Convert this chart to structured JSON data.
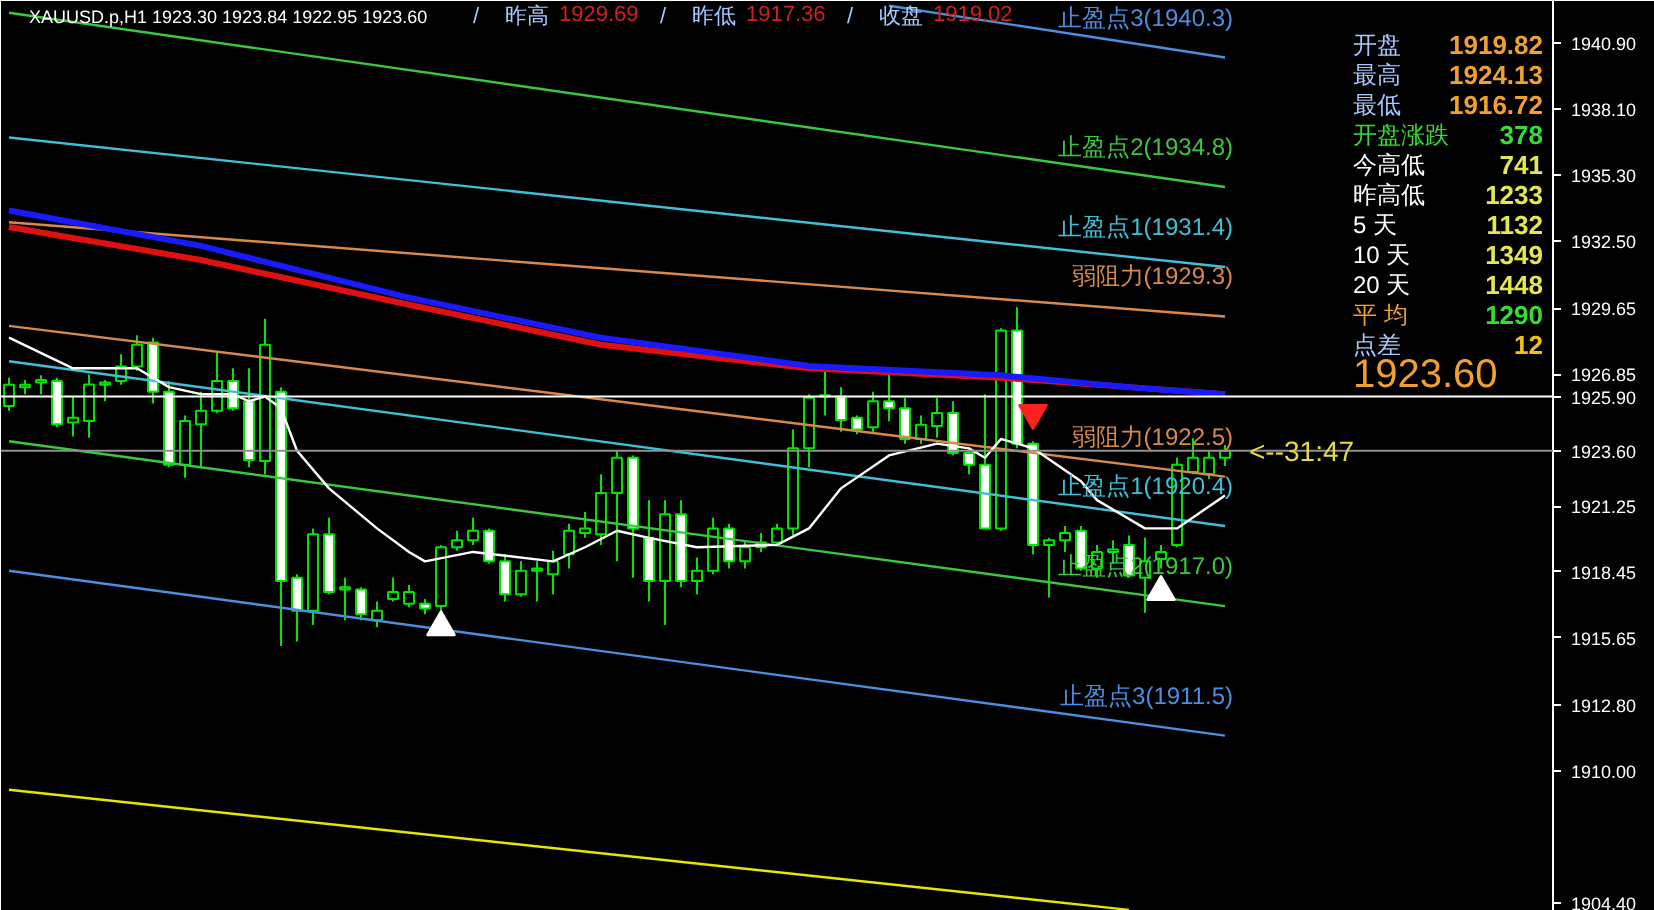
{
  "chart_data": {
    "type": "candlestick",
    "categories": [
      null,
      null,
      null,
      null,
      null,
      null,
      null,
      null,
      null,
      null,
      null,
      null,
      null,
      null,
      null,
      null,
      null,
      null,
      null,
      null,
      null,
      null,
      null,
      null,
      null,
      null,
      null,
      null,
      null,
      null,
      null,
      null,
      null,
      null,
      null,
      null,
      null,
      null,
      null,
      null,
      null,
      null,
      null,
      null,
      null,
      null,
      null,
      null,
      null,
      null,
      null,
      null,
      null,
      null,
      null,
      null,
      null,
      null,
      null,
      null,
      null,
      null,
      null,
      null,
      null,
      null,
      null,
      null,
      null,
      null,
      null,
      null,
      null,
      null,
      null,
      null,
      null,
      null,
      null,
      null,
      null,
      null,
      null,
      null,
      null,
      null,
      null,
      null,
      null,
      null,
      null,
      null,
      null,
      null,
      null,
      null,
      null
    ],
    "ohlc": [
      [
        1925.5,
        1926.7,
        1925.3,
        1926.4
      ],
      [
        1926.3,
        1926.6,
        1926.0,
        1926.4
      ],
      [
        1926.5,
        1926.8,
        1926.0,
        1926.6
      ],
      [
        1926.56,
        1926.7,
        1924.6,
        1924.72
      ],
      [
        1924.8,
        1925.9,
        1924.2,
        1925.0
      ],
      [
        1924.86,
        1926.84,
        1924.15,
        1926.41
      ],
      [
        1926.4,
        1926.6,
        1925.7,
        1926.5
      ],
      [
        1926.56,
        1927.7,
        1926.4,
        1927.18
      ],
      [
        1927.18,
        1928.5,
        1927.0,
        1928.1
      ],
      [
        1928.2,
        1928.4,
        1925.6,
        1926.1
      ],
      [
        1926.1,
        1926.55,
        1922.9,
        1923.0
      ],
      [
        1923.0,
        1925.1,
        1922.45,
        1924.86
      ],
      [
        1924.72,
        1926.1,
        1922.9,
        1925.3
      ],
      [
        1925.3,
        1927.8,
        1925.2,
        1926.56
      ],
      [
        1926.56,
        1927.1,
        1925.3,
        1925.4
      ],
      [
        1925.7,
        1927.1,
        1922.9,
        1923.2
      ],
      [
        1923.16,
        1929.2,
        1922.6,
        1928.1
      ],
      [
        1926.1,
        1926.3,
        1915.3,
        1918.07
      ],
      [
        1918.2,
        1918.35,
        1915.5,
        1916.8
      ],
      [
        1916.8,
        1920.3,
        1916.2,
        1920.05
      ],
      [
        1920.05,
        1920.75,
        1917.5,
        1917.6
      ],
      [
        1917.7,
        1918.2,
        1916.4,
        1917.8
      ],
      [
        1917.7,
        1917.8,
        1916.4,
        1916.65
      ],
      [
        1916.4,
        1917.2,
        1916.1,
        1916.8
      ],
      [
        1917.3,
        1918.2,
        1917.2,
        1917.6
      ],
      [
        1917.1,
        1917.9,
        1916.95,
        1917.6
      ],
      [
        1917.1,
        1917.3,
        1916.65,
        1916.9
      ],
      [
        1917.0,
        1919.6,
        1916.65,
        1919.5
      ],
      [
        1919.5,
        1920.2,
        1919.35,
        1919.8
      ],
      [
        1919.8,
        1920.75,
        1919.6,
        1920.2
      ],
      [
        1920.2,
        1920.3,
        1918.8,
        1918.9
      ],
      [
        1918.9,
        1919.2,
        1917.2,
        1917.5
      ],
      [
        1917.5,
        1918.9,
        1917.4,
        1918.5
      ],
      [
        1918.5,
        1918.9,
        1917.2,
        1918.6
      ],
      [
        1918.35,
        1919.35,
        1917.5,
        1918.9
      ],
      [
        1919.2,
        1920.5,
        1918.6,
        1920.2
      ],
      [
        1920.1,
        1921.0,
        1919.9,
        1920.3
      ],
      [
        1920.05,
        1922.6,
        1919.6,
        1921.8
      ],
      [
        1921.8,
        1923.6,
        1918.9,
        1923.3
      ],
      [
        1923.3,
        1923.4,
        1918.2,
        1920.3
      ],
      [
        1919.9,
        1921.5,
        1917.2,
        1918.07
      ],
      [
        1918.07,
        1921.5,
        1916.2,
        1920.9
      ],
      [
        1920.9,
        1921.5,
        1917.8,
        1918.07
      ],
      [
        1918.07,
        1919.06,
        1917.5,
        1918.5
      ],
      [
        1918.5,
        1920.75,
        1918.35,
        1920.3
      ],
      [
        1920.3,
        1920.5,
        1918.6,
        1918.9
      ],
      [
        1918.9,
        1919.8,
        1918.6,
        1919.5
      ],
      [
        1919.7,
        1920.1,
        1919.3,
        1919.5
      ],
      [
        1919.7,
        1920.5,
        1919.6,
        1920.3
      ],
      [
        1920.3,
        1924.5,
        1920.0,
        1923.7
      ],
      [
        1923.7,
        1926.0,
        1922.9,
        1925.85
      ],
      [
        1925.9,
        1927.1,
        1925.1,
        1925.95
      ],
      [
        1925.9,
        1926.3,
        1924.4,
        1924.9
      ],
      [
        1925.0,
        1925.1,
        1924.3,
        1924.5
      ],
      [
        1924.6,
        1926.1,
        1924.4,
        1925.7
      ],
      [
        1925.7,
        1927.0,
        1924.85,
        1925.4
      ],
      [
        1925.4,
        1925.85,
        1923.9,
        1924.1
      ],
      [
        1924.1,
        1925.1,
        1923.9,
        1924.7
      ],
      [
        1924.65,
        1925.85,
        1924.15,
        1925.2
      ],
      [
        1925.2,
        1925.7,
        1923.4,
        1923.5
      ],
      [
        1923.5,
        1923.7,
        1922.6,
        1923.0
      ],
      [
        1923.0,
        1926.0,
        1920.3,
        1920.3
      ],
      [
        1920.3,
        1928.8,
        1920.2,
        1928.7
      ],
      [
        1928.7,
        1929.69,
        1923.7,
        1923.9
      ],
      [
        1923.9,
        1924.0,
        1919.2,
        1919.6
      ],
      [
        1919.6,
        1919.9,
        1917.36,
        1919.8
      ],
      [
        1919.8,
        1920.4,
        1919.3,
        1920.1
      ],
      [
        1920.2,
        1920.4,
        1918.5,
        1918.6
      ],
      [
        1918.6,
        1919.6,
        1918.2,
        1919.3
      ],
      [
        1919.3,
        1919.8,
        1918.8,
        1919.4
      ],
      [
        1919.6,
        1920.0,
        1918.2,
        1918.3
      ],
      [
        1918.2,
        1919.9,
        1916.72,
        1918.9
      ],
      [
        1919.0,
        1919.6,
        1918.6,
        1919.3
      ],
      [
        1919.6,
        1923.3,
        1919.5,
        1923.0
      ],
      [
        1922.7,
        1924.13,
        1922.6,
        1923.3
      ],
      [
        1922.6,
        1923.6,
        1922.4,
        1923.3
      ],
      [
        1923.3,
        1923.84,
        1922.95,
        1923.6
      ],
      null,
      null,
      null,
      null,
      null,
      null,
      null,
      null,
      null,
      null,
      null,
      null,
      null,
      null,
      null,
      null,
      null,
      null,
      null,
      null
    ],
    "color": "#00e600",
    "series": [
      {
        "type": "line",
        "name": "止盈点3(1940.3)",
        "color": "#4a8fe0",
        "values": [
          null,
          null,
          null,
          null,
          null,
          null,
          null,
          null,
          null,
          null,
          null,
          null,
          null,
          null,
          null,
          null,
          null,
          null,
          null,
          null,
          null,
          null,
          null,
          null,
          null,
          null,
          null,
          null,
          null,
          null,
          null,
          null,
          null,
          null,
          null,
          null,
          null,
          null,
          null,
          null,
          null,
          null,
          null,
          null,
          null,
          null,
          null,
          null,
          null,
          null,
          null,
          null,
          null,
          null,
          null,
          1942.5,
          null,
          null,
          null,
          null,
          null,
          null,
          null,
          null,
          null,
          null,
          null,
          null,
          null,
          null,
          null,
          null,
          null,
          null,
          null,
          null,
          1940.3,
          null,
          null,
          null,
          null,
          null,
          null,
          null,
          null,
          null,
          null,
          null,
          null,
          null,
          null,
          null,
          null,
          null,
          null,
          null,
          null
        ]
      },
      {
        "type": "line",
        "name": "止盈点2(1934.8)",
        "color": "#3cc83c",
        "values": [
          1942.2,
          null,
          null,
          null,
          null,
          null,
          null,
          null,
          null,
          null,
          null,
          null,
          null,
          null,
          null,
          null,
          null,
          null,
          null,
          null,
          null,
          null,
          null,
          null,
          null,
          null,
          null,
          null,
          null,
          null,
          null,
          null,
          null,
          null,
          null,
          null,
          null,
          null,
          null,
          null,
          null,
          null,
          null,
          null,
          null,
          null,
          null,
          null,
          null,
          null,
          null,
          null,
          null,
          null,
          null,
          null,
          null,
          null,
          null,
          null,
          null,
          null,
          null,
          null,
          null,
          null,
          null,
          null,
          null,
          null,
          null,
          null,
          null,
          null,
          null,
          null,
          1934.8,
          null,
          null,
          null,
          null,
          null,
          null,
          null,
          null,
          null,
          null,
          null,
          null,
          null,
          null,
          null,
          null,
          null,
          null,
          null,
          null
        ]
      },
      {
        "type": "line",
        "name": "止盈点1(1931.4)",
        "color": "#40c0d8",
        "values": [
          1936.9,
          null,
          null,
          null,
          null,
          null,
          null,
          null,
          null,
          null,
          null,
          null,
          null,
          null,
          null,
          null,
          null,
          null,
          null,
          null,
          null,
          null,
          null,
          null,
          null,
          null,
          null,
          null,
          null,
          null,
          null,
          null,
          null,
          null,
          null,
          null,
          null,
          null,
          null,
          null,
          null,
          null,
          null,
          null,
          null,
          null,
          null,
          null,
          null,
          null,
          null,
          null,
          null,
          null,
          null,
          null,
          null,
          null,
          null,
          null,
          null,
          null,
          null,
          null,
          null,
          null,
          null,
          null,
          null,
          null,
          null,
          null,
          null,
          null,
          null,
          null,
          1931.4,
          null,
          null,
          null,
          null,
          null,
          null,
          null,
          null,
          null,
          null,
          null,
          null,
          null,
          null,
          null,
          null,
          null,
          null,
          null,
          null
        ]
      },
      {
        "type": "line",
        "name": "弱阻力(1929.3)",
        "color": "#d98a4a",
        "values": [
          1933.3,
          null,
          null,
          null,
          null,
          null,
          null,
          null,
          null,
          null,
          null,
          null,
          null,
          null,
          null,
          null,
          null,
          null,
          null,
          null,
          null,
          null,
          null,
          null,
          null,
          null,
          null,
          null,
          null,
          null,
          null,
          null,
          null,
          null,
          null,
          null,
          null,
          null,
          null,
          null,
          null,
          null,
          null,
          null,
          null,
          null,
          null,
          null,
          null,
          null,
          null,
          null,
          null,
          null,
          null,
          null,
          null,
          null,
          null,
          null,
          null,
          null,
          null,
          null,
          null,
          null,
          null,
          null,
          null,
          null,
          null,
          null,
          null,
          null,
          null,
          null,
          1929.3,
          null,
          null,
          null,
          null,
          null,
          null,
          null,
          null,
          null,
          null,
          null,
          null,
          null,
          null,
          null,
          null,
          null,
          null,
          null,
          null
        ]
      },
      {
        "type": "line",
        "name": "弱阻力(1922.5)",
        "color": "#d98a4a",
        "values": [
          1928.9,
          null,
          null,
          null,
          null,
          null,
          null,
          null,
          null,
          null,
          null,
          null,
          null,
          null,
          null,
          null,
          null,
          null,
          null,
          null,
          null,
          null,
          null,
          null,
          null,
          null,
          null,
          null,
          null,
          null,
          null,
          null,
          null,
          null,
          null,
          null,
          null,
          null,
          null,
          null,
          null,
          null,
          null,
          null,
          null,
          null,
          null,
          null,
          null,
          null,
          null,
          null,
          null,
          null,
          null,
          null,
          null,
          null,
          null,
          null,
          null,
          null,
          null,
          null,
          null,
          null,
          null,
          null,
          null,
          null,
          null,
          null,
          null,
          null,
          null,
          null,
          1922.5,
          null,
          null,
          null,
          null,
          null,
          null,
          null,
          null,
          null,
          null,
          null,
          null,
          null,
          null,
          null,
          null,
          null,
          null,
          null,
          null
        ]
      },
      {
        "type": "line",
        "name": "止盈点1(1920.4)",
        "color": "#40c0d8",
        "values": [
          1927.4,
          null,
          null,
          null,
          null,
          null,
          null,
          null,
          null,
          null,
          null,
          null,
          null,
          null,
          null,
          null,
          null,
          null,
          null,
          null,
          null,
          null,
          null,
          null,
          null,
          null,
          null,
          null,
          null,
          null,
          null,
          null,
          null,
          null,
          null,
          null,
          null,
          null,
          null,
          null,
          null,
          null,
          null,
          null,
          null,
          null,
          null,
          null,
          null,
          null,
          null,
          null,
          null,
          null,
          null,
          null,
          null,
          null,
          null,
          null,
          null,
          null,
          null,
          null,
          null,
          null,
          null,
          null,
          null,
          null,
          null,
          null,
          null,
          null,
          null,
          null,
          1920.4,
          null,
          null,
          null,
          null,
          null,
          null,
          null,
          null,
          null,
          null,
          null,
          null,
          null,
          null,
          null,
          null,
          null,
          null,
          null,
          null
        ]
      },
      {
        "type": "line",
        "name": "止盈点2(1917.0)",
        "color": "#3cc83c",
        "values": [
          1924.0,
          null,
          null,
          null,
          null,
          null,
          null,
          null,
          null,
          null,
          null,
          null,
          null,
          null,
          null,
          null,
          null,
          null,
          null,
          null,
          null,
          null,
          null,
          null,
          null,
          null,
          null,
          null,
          null,
          null,
          null,
          null,
          null,
          null,
          null,
          null,
          null,
          null,
          null,
          null,
          null,
          null,
          null,
          null,
          null,
          null,
          null,
          null,
          null,
          null,
          null,
          null,
          null,
          null,
          null,
          null,
          null,
          null,
          null,
          null,
          null,
          null,
          null,
          null,
          null,
          null,
          null,
          null,
          null,
          null,
          null,
          null,
          null,
          null,
          null,
          null,
          1917.0,
          null,
          null,
          null,
          null,
          null,
          null,
          null,
          null,
          null,
          null,
          null,
          null,
          null,
          null,
          null,
          null,
          null,
          null,
          null,
          null
        ]
      },
      {
        "type": "line",
        "name": "止盈点3(1911.5)",
        "color": "#4a8fe0",
        "values": [
          1918.5,
          null,
          null,
          null,
          null,
          null,
          null,
          null,
          null,
          null,
          null,
          null,
          null,
          null,
          null,
          null,
          null,
          null,
          null,
          null,
          null,
          null,
          null,
          null,
          null,
          null,
          null,
          null,
          null,
          null,
          null,
          null,
          null,
          null,
          null,
          null,
          null,
          null,
          null,
          null,
          null,
          null,
          null,
          null,
          null,
          null,
          null,
          null,
          null,
          null,
          null,
          null,
          null,
          null,
          null,
          null,
          null,
          null,
          null,
          null,
          null,
          null,
          null,
          null,
          null,
          null,
          null,
          null,
          null,
          null,
          null,
          null,
          null,
          null,
          null,
          null,
          1911.5,
          null,
          null,
          null,
          null,
          null,
          null,
          null,
          null,
          null,
          null,
          null,
          null,
          null,
          null,
          null,
          null,
          null,
          null,
          null,
          null
        ]
      },
      {
        "type": "line",
        "color": "#e6e600",
        "values": [
          1909.2,
          null,
          null,
          null,
          null,
          null,
          null,
          null,
          null,
          null,
          null,
          null,
          null,
          null,
          null,
          null,
          null,
          null,
          null,
          null,
          null,
          null,
          null,
          null,
          null,
          null,
          null,
          null,
          null,
          null,
          null,
          null,
          null,
          null,
          null,
          null,
          null,
          null,
          null,
          null,
          null,
          null,
          null,
          null,
          null,
          null,
          null,
          null,
          null,
          null,
          null,
          null,
          null,
          null,
          null,
          null,
          null,
          null,
          null,
          null,
          null,
          null,
          null,
          null,
          null,
          null,
          null,
          null,
          null,
          null,
          1904.1,
          null,
          null,
          null,
          null,
          null,
          null,
          null,
          null,
          null,
          null,
          null,
          null,
          null,
          null,
          null,
          null,
          null,
          null,
          null,
          null,
          null,
          null,
          null,
          null,
          null,
          null
        ]
      },
      {
        "type": "line",
        "color": "#e01010",
        "values": [
          1933.1,
          null,
          null,
          null,
          null,
          null,
          null,
          null,
          null,
          null,
          null,
          null,
          1931.7,
          null,
          null,
          null,
          null,
          null,
          null,
          null,
          null,
          null,
          null,
          null,
          null,
          1929.8,
          null,
          null,
          null,
          null,
          null,
          null,
          null,
          null,
          null,
          null,
          null,
          1928.1,
          null,
          null,
          null,
          null,
          null,
          null,
          null,
          null,
          null,
          null,
          null,
          null,
          1927.1,
          null,
          null,
          null,
          null,
          null,
          null,
          null,
          null,
          null,
          null,
          null,
          1926.7,
          null,
          null,
          null,
          null,
          null,
          null,
          null,
          1926.3,
          null,
          null,
          null,
          null,
          null,
          1926.0,
          null,
          null,
          null,
          null,
          null,
          null,
          null,
          null,
          null,
          null,
          null,
          null,
          null,
          null,
          null,
          null,
          null,
          null,
          null,
          null
        ]
      },
      {
        "type": "line",
        "color": "#1a1aff",
        "values": [
          1933.8,
          null,
          null,
          null,
          null,
          null,
          null,
          null,
          null,
          null,
          null,
          null,
          1932.3,
          null,
          null,
          null,
          null,
          null,
          null,
          null,
          null,
          null,
          null,
          null,
          null,
          1930.1,
          null,
          null,
          null,
          null,
          null,
          null,
          null,
          null,
          null,
          null,
          null,
          1928.4,
          null,
          null,
          null,
          null,
          null,
          null,
          null,
          null,
          null,
          null,
          null,
          null,
          1927.2,
          null,
          null,
          null,
          null,
          null,
          null,
          null,
          null,
          null,
          null,
          null,
          1926.8,
          null,
          null,
          null,
          null,
          null,
          null,
          null,
          1926.3,
          null,
          null,
          null,
          null,
          null,
          1926.0,
          null,
          null,
          null,
          null,
          null,
          null,
          null,
          null,
          null,
          null,
          null,
          null,
          null,
          null,
          null,
          null,
          null,
          null,
          null,
          null
        ]
      },
      {
        "type": "line",
        "color": "#ffffff",
        "values": [
          1928.4,
          null,
          null,
          null,
          1927.1,
          null,
          null,
          null,
          1927.1,
          null,
          1926.3,
          null,
          1926.0,
          null,
          1926.0,
          1925.7,
          1925.9,
          1925.4,
          1923.6,
          null,
          1922.0,
          null,
          null,
          1920.3,
          null,
          1919.3,
          1918.9,
          null,
          null,
          1919.3,
          null,
          null,
          null,
          null,
          1918.9,
          null,
          1919.5,
          null,
          1920.2,
          null,
          1919.9,
          null,
          null,
          1919.5,
          null,
          null,
          null,
          null,
          1919.6,
          null,
          1920.3,
          null,
          1922.0,
          null,
          null,
          1923.4,
          null,
          null,
          1923.9,
          null,
          1923.7,
          1923.3,
          1924.1,
          null,
          1923.7,
          null,
          null,
          1922.3,
          1921.5,
          null,
          null,
          1920.3,
          null,
          1920.3,
          null,
          null,
          1921.7,
          null,
          null,
          null,
          null,
          null,
          null,
          null,
          null,
          null,
          null,
          null,
          null,
          null,
          null,
          null,
          null,
          null,
          null,
          null,
          null
        ]
      },
      {
        "type": "scatter",
        "marker": "triangle",
        "color": "#ffffff",
        "values": [
          null,
          null,
          null,
          null,
          null,
          null,
          null,
          null,
          null,
          null,
          null,
          null,
          null,
          null,
          null,
          null,
          null,
          null,
          null,
          null,
          null,
          null,
          null,
          null,
          null,
          null,
          null,
          1916.1,
          null,
          null,
          null,
          null,
          null,
          null,
          null,
          null,
          null,
          null,
          null,
          null,
          null,
          null,
          null,
          null,
          null,
          null,
          null,
          null,
          null,
          null,
          null,
          null,
          null,
          null,
          null,
          null,
          null,
          null,
          null,
          null,
          null,
          null,
          null,
          null,
          null,
          null,
          null,
          null,
          null,
          null,
          null,
          null,
          1917.6,
          null,
          null,
          null,
          null,
          null,
          null,
          null,
          null,
          null,
          null,
          null,
          null,
          null,
          null,
          null,
          null,
          null,
          null,
          null,
          null,
          null,
          null,
          null,
          null
        ]
      },
      {
        "type": "scatter",
        "marker": "triangle_down",
        "color": "#ff2020",
        "values": [
          null,
          null,
          null,
          null,
          null,
          null,
          null,
          null,
          null,
          null,
          null,
          null,
          null,
          null,
          null,
          null,
          null,
          null,
          null,
          null,
          null,
          null,
          null,
          null,
          null,
          null,
          null,
          null,
          null,
          null,
          null,
          null,
          null,
          null,
          null,
          null,
          null,
          null,
          null,
          null,
          null,
          null,
          null,
          null,
          null,
          null,
          null,
          null,
          null,
          null,
          null,
          null,
          null,
          null,
          null,
          null,
          null,
          null,
          null,
          null,
          null,
          null,
          null,
          null,
          1925.2,
          null,
          null,
          null,
          null,
          null,
          null,
          null,
          null,
          null,
          null,
          null,
          null,
          null,
          null,
          null,
          null,
          null,
          null,
          null,
          null,
          null,
          null,
          null,
          null,
          null,
          null,
          null,
          null,
          null,
          null,
          null,
          null
        ]
      }
    ],
    "ref_lines": [
      {
        "axis": "y",
        "value": 1925.9,
        "color": "#ffffff"
      },
      {
        "axis": "y",
        "value": 1923.6,
        "color": "#909090"
      }
    ],
    "annotations": [
      "XAUUSD.p,H1  1923.30 1923.84 1922.95 1923.60",
      "/ 昨高 1929.69 / 昨低 1917.36 / 收盘 1919.02",
      "开盘 1919.82",
      "最高 1924.13",
      "最低 1916.72",
      "开盘涨跌 378",
      "今高低 741",
      "昨高低 1233",
      "5 天 1132",
      "10 天 1349",
      "20 天 1448",
      "平 均 1290",
      "点差 12",
      "1923.60",
      {
        "text": "<--31:47",
        "y": 1923.6
      }
    ],
    "ylim": [
      1904.05,
      1942.7
    ],
    "yticks": [
      {
        "value": 1940.9,
        "label": "1940.90"
      },
      {
        "value": 1938.1,
        "label": "1938.10"
      },
      {
        "value": 1935.3,
        "label": "1935.30"
      },
      {
        "value": 1932.5,
        "label": "1932.50"
      },
      {
        "value": 1929.65,
        "label": "1929.65"
      },
      {
        "value": 1926.85,
        "label": "1926.85"
      },
      {
        "value": 1925.9,
        "label": "1925.90"
      },
      {
        "value": 1923.6,
        "label": "1923.60"
      },
      {
        "value": 1921.25,
        "label": "1921.25"
      },
      {
        "value": 1918.45,
        "label": "1918.45"
      },
      {
        "value": 1915.65,
        "label": "1915.65"
      },
      {
        "value": 1912.8,
        "label": "1912.80"
      },
      {
        "value": 1910.0,
        "label": "1910.00"
      },
      {
        "value": 1904.4,
        "label": "1904.40"
      }
    ],
    "tick_labels": "y",
    "grid": false
  }
}
